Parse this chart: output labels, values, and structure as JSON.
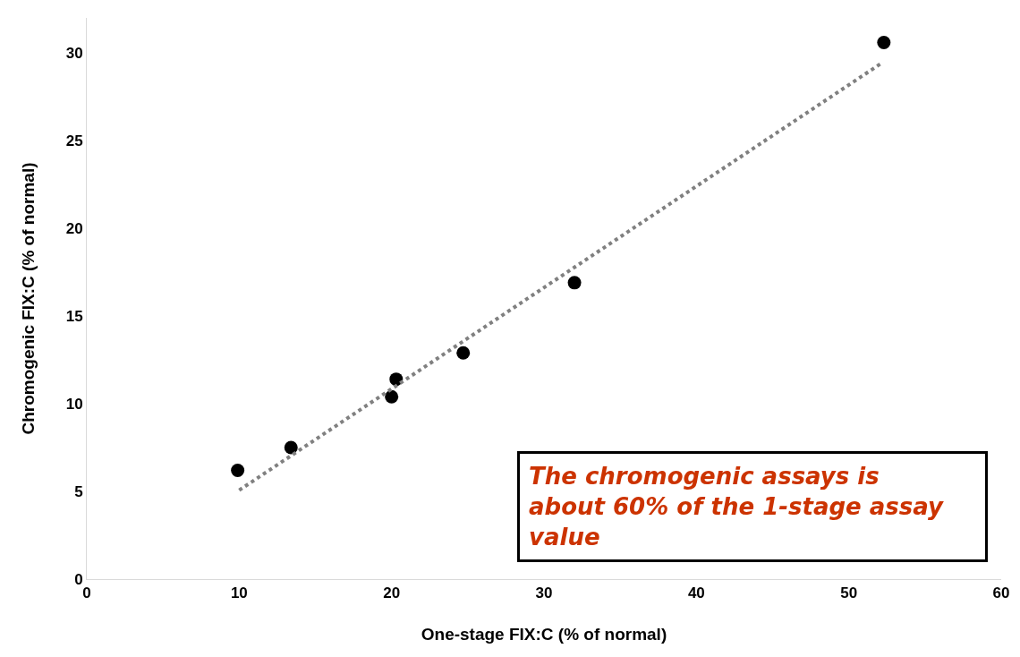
{
  "chart_data": {
    "type": "scatter",
    "xlabel": "One-stage FIX:C (% of normal)",
    "ylabel": "Chromogenic FIX:C (% of normal)",
    "xlim": [
      0,
      60
    ],
    "xticks": [
      0,
      10,
      20,
      30,
      40,
      50,
      60
    ],
    "ylim": [
      0,
      32
    ],
    "yticks": [
      0,
      5,
      10,
      15,
      20,
      25,
      30
    ],
    "grid": false,
    "marker": "circle",
    "series": [
      {
        "color": "#000000",
        "x": [
          9.9,
          13.4,
          20.0,
          20.3,
          24.7,
          32.0,
          52.3
        ],
        "values": [
          6.2,
          7.5,
          10.4,
          11.4,
          12.9,
          16.9,
          30.6
        ]
      },
      {
        "type": "line",
        "color": "#808080",
        "line_style": "dotted",
        "marker": "none",
        "x": [
          10.0,
          52.2
        ],
        "values": [
          5.07,
          29.45
        ]
      }
    ],
    "annotations": [
      "The chromogenic assays is about 60% of the 1-stage assay value"
    ]
  }
}
